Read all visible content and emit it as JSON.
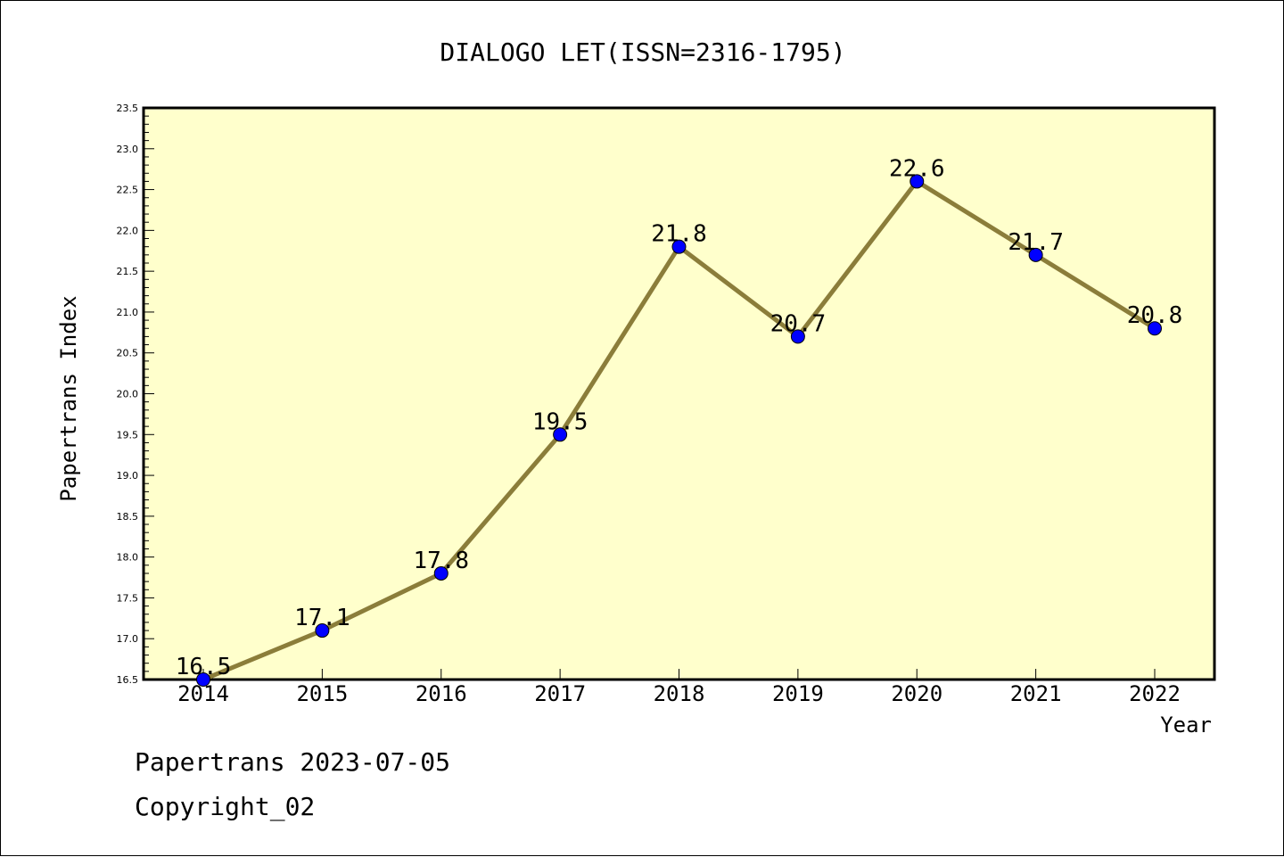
{
  "chart_data": {
    "type": "line",
    "title": "DIALOGO LET(ISSN=2316-1795)",
    "xlabel": "Year",
    "ylabel": "Papertrans Index",
    "categories": [
      "2014",
      "2015",
      "2016",
      "2017",
      "2018",
      "2019",
      "2020",
      "2021",
      "2022"
    ],
    "values": [
      16.5,
      17.1,
      17.8,
      19.5,
      21.8,
      20.7,
      22.6,
      21.7,
      20.8
    ],
    "data_labels": [
      "16.5",
      "17.1",
      "17.8",
      "19.5",
      "21.8",
      "20.7",
      "22.6",
      "21.7",
      "20.8"
    ],
    "ylim": [
      16.5,
      23.5
    ],
    "yticks": [
      "16.5",
      "17.0",
      "17.5",
      "18.0",
      "18.5",
      "19.0",
      "19.5",
      "20.0",
      "20.5",
      "21.0",
      "21.5",
      "22.0",
      "22.5",
      "23.0",
      "23.5"
    ],
    "grid": false,
    "colors": {
      "plot_background": "#ffffcc",
      "line": "#8b7d3a",
      "marker": "#0000ff"
    }
  },
  "footer": {
    "line1": "Papertrans 2023-07-05",
    "line2": "Copyright_02"
  }
}
